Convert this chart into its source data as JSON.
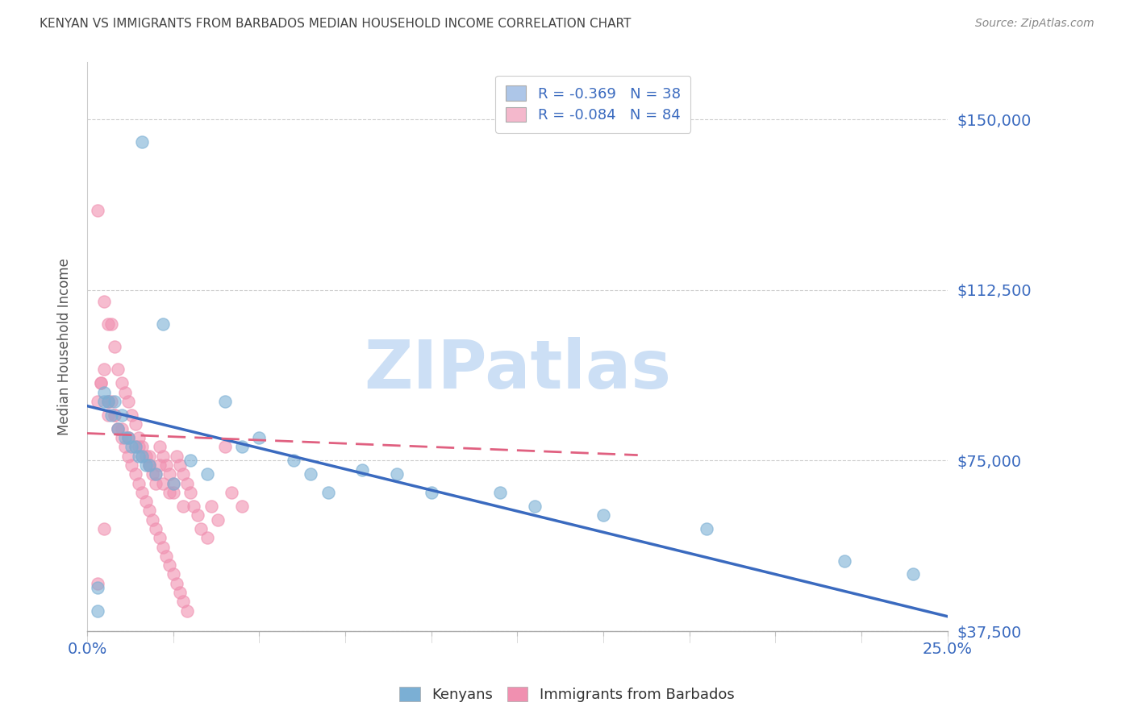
{
  "title": "KENYAN VS IMMIGRANTS FROM BARBADOS MEDIAN HOUSEHOLD INCOME CORRELATION CHART",
  "source": "Source: ZipAtlas.com",
  "ylabel": "Median Household Income",
  "xlim": [
    0.0,
    0.25
  ],
  "ylim": [
    37500,
    162500
  ],
  "xticks": [
    0.0,
    0.025,
    0.05,
    0.075,
    0.1,
    0.125,
    0.15,
    0.175,
    0.2,
    0.225,
    0.25
  ],
  "xtick_labels": [
    "0.0%",
    "",
    "",
    "",
    "",
    "",
    "",
    "",
    "",
    "",
    "25.0%"
  ],
  "ytick_labels": [
    "$37,500",
    "$75,000",
    "$112,500",
    "$150,000"
  ],
  "ytick_values": [
    37500,
    75000,
    112500,
    150000
  ],
  "legend_entries": [
    {
      "label": "R = -0.369   N = 38",
      "facecolor": "#adc6e8"
    },
    {
      "label": "R = -0.084   N = 84",
      "facecolor": "#f4b8cc"
    }
  ],
  "kenyan_color": "#7bafd4",
  "barbados_color": "#f090b0",
  "kenyan_line_color": "#3a6abf",
  "barbados_line_color": "#e06080",
  "background_color": "#ffffff",
  "grid_color": "#cccccc",
  "title_color": "#444444",
  "label_color": "#3a6abf",
  "watermark": "ZIPatlas",
  "watermark_color": "#ccdff5",
  "kenyan_R": -0.369,
  "barbados_R": -0.084,
  "kenyan_intercept": 87000,
  "kenyan_slope": -185000,
  "barbados_intercept": 81000,
  "barbados_slope": -30000,
  "kenyan_x": [
    0.016,
    0.022,
    0.04,
    0.003,
    0.005,
    0.008,
    0.01,
    0.012,
    0.014,
    0.016,
    0.018,
    0.005,
    0.007,
    0.009,
    0.011,
    0.013,
    0.015,
    0.017,
    0.02,
    0.025,
    0.03,
    0.035,
    0.045,
    0.05,
    0.06,
    0.065,
    0.07,
    0.08,
    0.09,
    0.1,
    0.12,
    0.13,
    0.15,
    0.18,
    0.22,
    0.24,
    0.006,
    0.003
  ],
  "kenyan_y": [
    145000,
    105000,
    88000,
    42000,
    90000,
    88000,
    85000,
    80000,
    78000,
    76000,
    74000,
    88000,
    85000,
    82000,
    80000,
    78000,
    76000,
    74000,
    72000,
    70000,
    75000,
    72000,
    78000,
    80000,
    75000,
    72000,
    68000,
    73000,
    72000,
    68000,
    68000,
    65000,
    63000,
    60000,
    53000,
    50000,
    88000,
    47000
  ],
  "barbados_x": [
    0.003,
    0.004,
    0.005,
    0.005,
    0.006,
    0.006,
    0.007,
    0.007,
    0.008,
    0.008,
    0.009,
    0.009,
    0.01,
    0.01,
    0.011,
    0.011,
    0.012,
    0.012,
    0.013,
    0.013,
    0.014,
    0.014,
    0.015,
    0.015,
    0.016,
    0.016,
    0.017,
    0.017,
    0.018,
    0.018,
    0.019,
    0.019,
    0.02,
    0.02,
    0.021,
    0.021,
    0.022,
    0.022,
    0.023,
    0.023,
    0.024,
    0.024,
    0.025,
    0.025,
    0.026,
    0.026,
    0.027,
    0.027,
    0.028,
    0.028,
    0.029,
    0.029,
    0.03,
    0.031,
    0.032,
    0.033,
    0.035,
    0.036,
    0.038,
    0.04,
    0.042,
    0.045,
    0.004,
    0.006,
    0.008,
    0.01,
    0.012,
    0.014,
    0.016,
    0.018,
    0.02,
    0.022,
    0.024,
    0.003,
    0.006,
    0.009,
    0.012,
    0.015,
    0.018,
    0.021,
    0.025,
    0.028,
    0.003,
    0.005
  ],
  "barbados_y": [
    130000,
    92000,
    95000,
    110000,
    105000,
    88000,
    105000,
    88000,
    100000,
    85000,
    95000,
    82000,
    92000,
    80000,
    90000,
    78000,
    88000,
    76000,
    85000,
    74000,
    83000,
    72000,
    80000,
    70000,
    78000,
    68000,
    76000,
    66000,
    74000,
    64000,
    72000,
    62000,
    70000,
    60000,
    78000,
    58000,
    76000,
    56000,
    74000,
    54000,
    72000,
    52000,
    70000,
    50000,
    76000,
    48000,
    74000,
    46000,
    72000,
    44000,
    70000,
    42000,
    68000,
    65000,
    63000,
    60000,
    58000,
    65000,
    62000,
    78000,
    68000,
    65000,
    92000,
    88000,
    85000,
    82000,
    80000,
    78000,
    76000,
    74000,
    72000,
    70000,
    68000,
    88000,
    85000,
    82000,
    80000,
    78000,
    76000,
    74000,
    68000,
    65000,
    48000,
    60000
  ]
}
